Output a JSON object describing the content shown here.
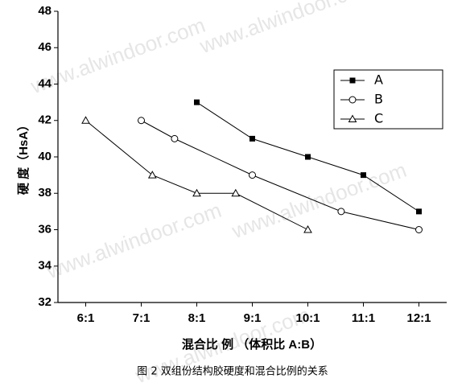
{
  "chart_data": {
    "type": "line",
    "watermark": "www.alwindoor.com",
    "x_label": "混合比 例 （体积比 A:B）",
    "y_label": "硬 度（HsA）",
    "caption": "图 2 双组份结构胶硬度和混合比例的关系",
    "xlim": [
      5.5,
      12.5
    ],
    "xticks": [
      {
        "value": 6,
        "label": "6:1"
      },
      {
        "value": 7,
        "label": "7:1"
      },
      {
        "value": 8,
        "label": "8:1"
      },
      {
        "value": 9,
        "label": "9:1"
      },
      {
        "value": 10,
        "label": "10:1"
      },
      {
        "value": 11,
        "label": "11:1"
      },
      {
        "value": 12,
        "label": "12:1"
      }
    ],
    "ylim": [
      32,
      48
    ],
    "yticks": [
      32,
      34,
      36,
      38,
      40,
      42,
      44,
      46,
      48
    ],
    "legend": "upper right",
    "series": [
      {
        "name": "A",
        "color": "#000000",
        "marker": "filled-square",
        "x": [
          8,
          9,
          10,
          11,
          12
        ],
        "values": [
          43,
          41,
          40,
          39,
          37
        ]
      },
      {
        "name": "B",
        "color": "#000000",
        "marker": "open-circle",
        "x": [
          7,
          7.6,
          9,
          10.6,
          12
        ],
        "values": [
          42,
          41,
          39,
          37,
          36
        ]
      },
      {
        "name": "C",
        "color": "#000000",
        "marker": "open-triangle",
        "x": [
          6,
          7.2,
          8,
          8.7,
          10
        ],
        "values": [
          42,
          39,
          38,
          38,
          36
        ]
      }
    ]
  }
}
